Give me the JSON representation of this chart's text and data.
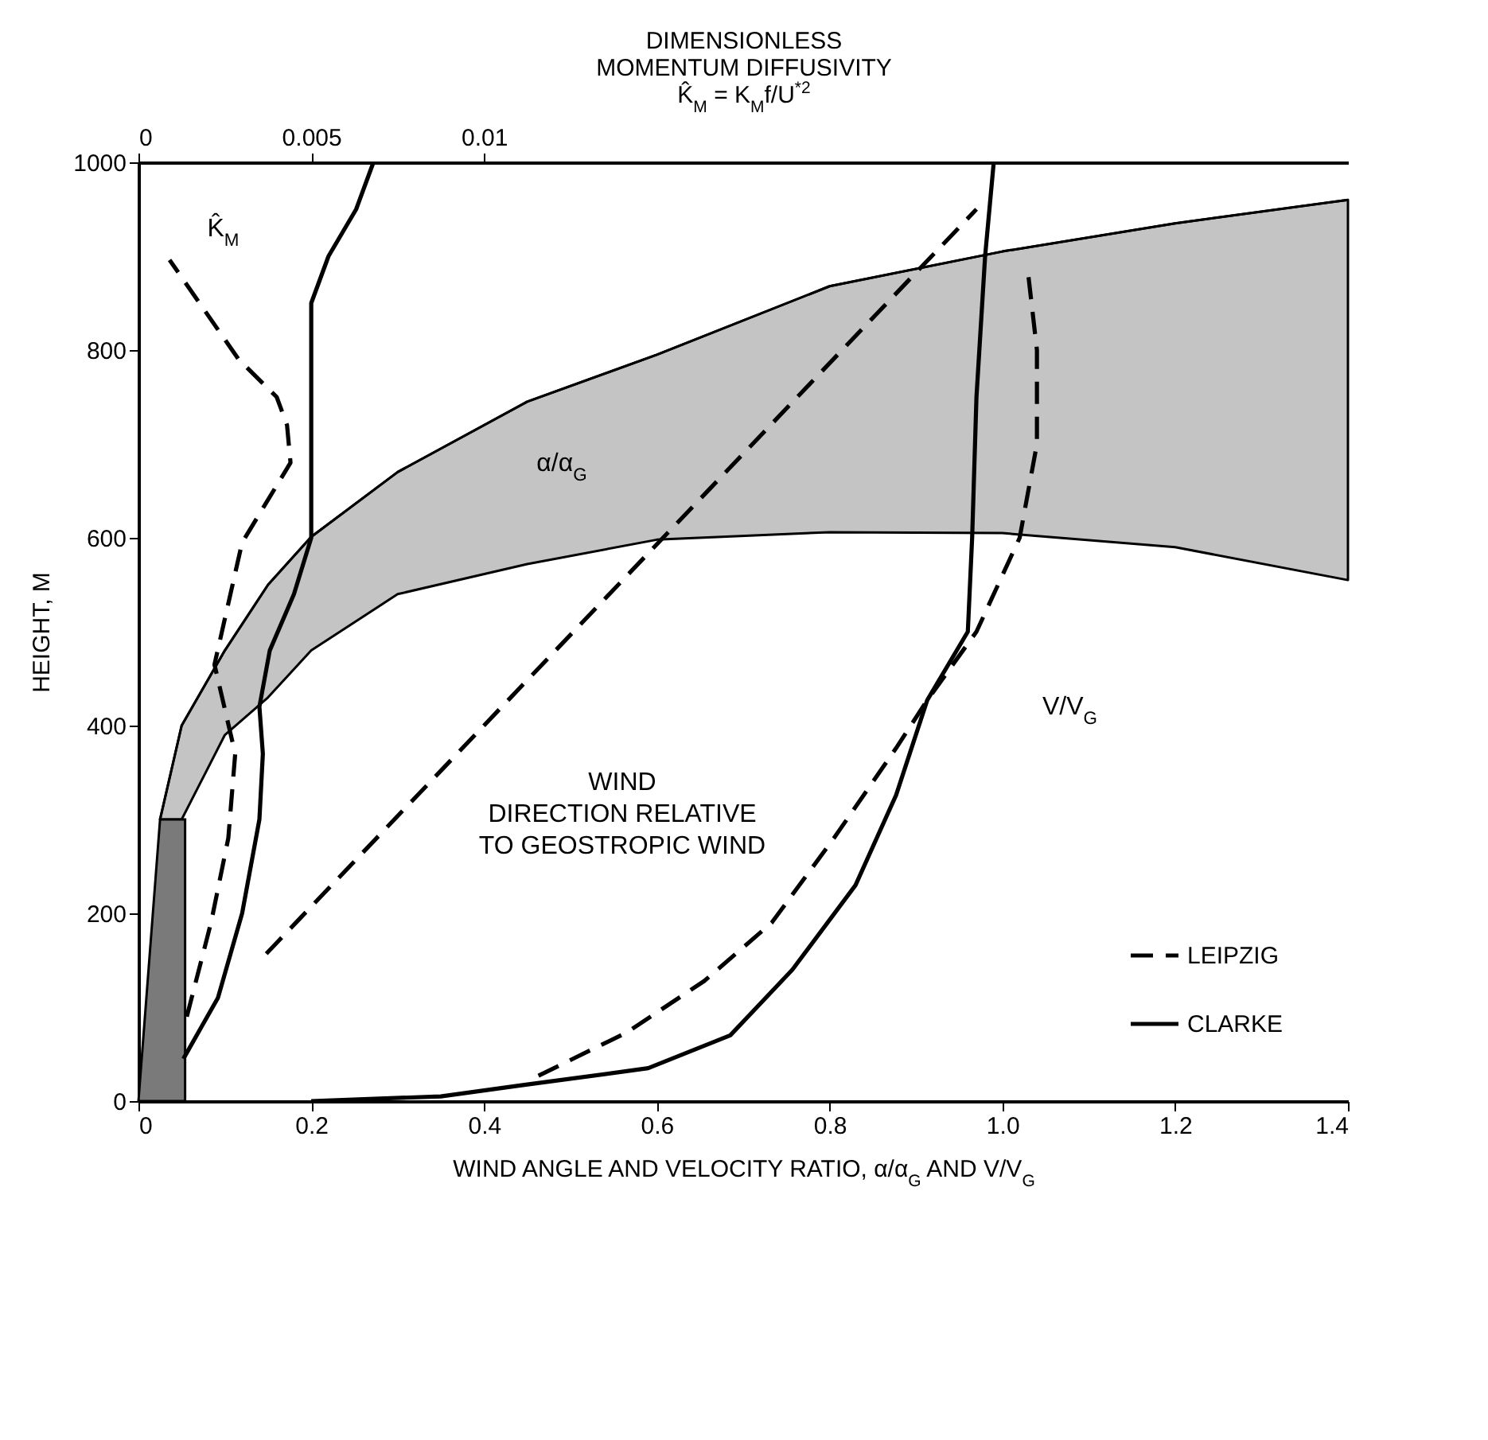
{
  "chart_data": {
    "type": "line",
    "x2label": "DIMENSIONLESS\nMOMENTUM DIFFUSIVITY\nK̂$_{M}$ = K$_{M}$f/U$^{*2}$",
    "xlabel": "WIND ANGLE AND VELOCITY RATIO, α/α$_{G}$ AND V/V$_{G}$",
    "ylabel": "HEIGHT, M",
    "xlim": [
      0,
      1.4
    ],
    "xticks": [
      0,
      0.2,
      0.4,
      0.6,
      0.8,
      {
        "value": 1,
        "label": "1.0"
      },
      1.2,
      1.4
    ],
    "x2lim": [
      0,
      0.035
    ],
    "x2ticks": [
      0,
      0.005,
      0.01
    ],
    "ylim": [
      0,
      1000
    ],
    "yticks": [
      0,
      200,
      400,
      600,
      800,
      1000
    ],
    "grid": false,
    "legend": "bottom right",
    "series": [
      {
        "color": "#000000",
        "line_style": "solid",
        "x": [
          0.025,
          0.05,
          0.1,
          0.15,
          0.2,
          0.3,
          0.45,
          0.6,
          0.8,
          1.0,
          1.2,
          1.4
        ],
        "values": [
          300,
          400,
          480,
          550,
          601,
          670,
          745,
          795,
          868,
          905,
          935,
          960
        ],
        "upper": [
          300,
          400,
          480,
          550,
          601,
          670,
          745,
          795,
          868,
          905,
          935,
          960
        ],
        "lower": [
          300,
          300,
          390,
          430,
          480,
          540,
          572,
          598,
          606,
          605,
          590,
          555
        ]
      },
      {
        "type": "area",
        "color": "#7a7a7a",
        "x": [
          0,
          0.025,
          0.054
        ],
        "values": [
          0,
          300,
          300
        ]
      },
      {
        "axis": "x2",
        "color": "#000000",
        "line_style": "dashed",
        "x": [
          0.0014,
          0.0021,
          0.0026,
          0.0028,
          0.0022,
          0.003,
          0.0044,
          0.0043,
          0.004,
          0.0029,
          0.0009
        ],
        "values": [
          90,
          190,
          280,
          370,
          465,
          595,
          680,
          720,
          750,
          790,
          896
        ]
      },
      {
        "axis": "x2",
        "color": "#000000",
        "line_style": "solid",
        "x": [
          0.0013,
          0.0023,
          0.003,
          0.0035,
          0.0036,
          0.0035,
          0.0038,
          0.0045,
          0.005,
          0.005,
          0.005,
          0.0055,
          0.0063,
          0.0068
        ],
        "values": [
          45,
          110,
          200,
          300,
          370,
          420,
          480,
          540,
          600,
          700,
          850,
          900,
          950,
          1000
        ]
      },
      {
        "color": "#000000",
        "line_style": "dashed",
        "x": [
          0.148,
          0.97
        ],
        "values": [
          157,
          950
        ]
      },
      {
        "name": "LEIPZIG",
        "color": "#000000",
        "line_style": "dashed",
        "x": [
          0.463,
          0.565,
          0.655,
          0.733,
          0.805,
          0.877,
          0.913,
          0.97,
          1.02,
          1.04,
          1.04,
          1.03
        ],
        "values": [
          27,
          73,
          128,
          190,
          280,
          376,
          427,
          500,
          600,
          700,
          800,
          880
        ]
      },
      {
        "name": "CLARKE",
        "color": "#000000",
        "line_style": "solid",
        "x": [
          0.2,
          0.35,
          0.445,
          0.59,
          0.685,
          0.757,
          0.83,
          0.877,
          0.913,
          0.96,
          0.965,
          0.97,
          0.98,
          0.99
        ],
        "values": [
          0,
          5,
          17,
          35,
          70,
          140,
          230,
          326,
          427,
          500,
          600,
          750,
          900,
          1000
        ]
      }
    ],
    "annotations": [
      "K̂$_{M}$",
      "α/α$_{G}$",
      "V/V$_{G}$",
      "WIND\nDIRECTION RELATIVE\nTO GEOSTROPIC WIND"
    ]
  }
}
